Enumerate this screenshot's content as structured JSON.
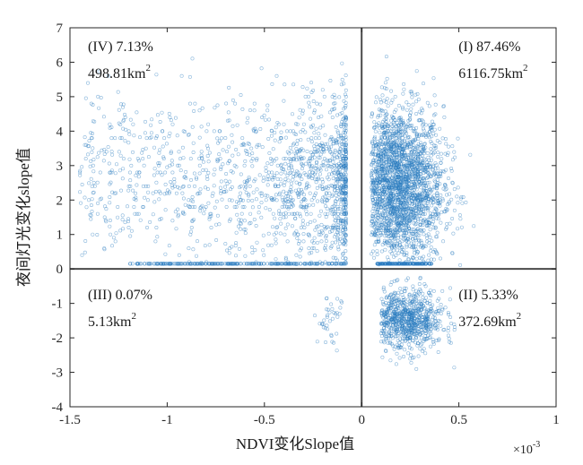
{
  "chart_data": {
    "type": "scatter",
    "xlabel": "NDVI变化Slope值",
    "ylabel": "夜间灯光变化slope值",
    "x_multiplier": "×10",
    "x_multiplier_exp": "-3",
    "xlim": [
      -0.0015,
      0.001
    ],
    "ylim": [
      -4,
      7
    ],
    "x_ticks": [
      -0.0015,
      -0.001,
      -0.0005,
      0,
      0.0005,
      0.001
    ],
    "x_tick_labels": [
      "-1.5",
      "-1",
      "-0.5",
      "0",
      "0.5",
      "1"
    ],
    "y_ticks": [
      -4,
      -3,
      -2,
      -1,
      0,
      1,
      2,
      3,
      4,
      5,
      6,
      7
    ],
    "y_tick_labels": [
      "-4",
      "-3",
      "-2",
      "-1",
      "0",
      "1",
      "2",
      "3",
      "4",
      "5",
      "6",
      "7"
    ],
    "reference_lines": {
      "x": 0,
      "y": 0
    },
    "marker_color": "#2a7bc0",
    "grid": false,
    "quadrants": [
      {
        "id": "I",
        "percent_text": "(I) 87.46%",
        "area_value": "6116.75km",
        "area_unit_exp": "2",
        "position": "top-right"
      },
      {
        "id": "II",
        "percent_text": "(II) 5.33%",
        "area_value": "372.69km",
        "area_unit_exp": "2",
        "position": "bottom-right"
      },
      {
        "id": "III",
        "percent_text": "(III) 0.07%",
        "area_value": "5.13km",
        "area_unit_exp": "2",
        "position": "bottom-left"
      },
      {
        "id": "IV",
        "percent_text": "(IV) 7.13%",
        "area_value": "498.81km",
        "area_unit_exp": "2",
        "position": "top-left"
      }
    ],
    "clusters": [
      {
        "quadrant": "I",
        "x_center": 0.00018,
        "x_spread": 0.00012,
        "y_center": 2.4,
        "y_spread": 1.15,
        "y_range": [
          0.1,
          6.2
        ],
        "x_range": [
          5e-05,
          0.00068
        ],
        "density": "very-high"
      },
      {
        "quadrant": "II",
        "x_center": 0.00022,
        "x_spread": 0.0001,
        "y_center": -1.5,
        "y_spread": 0.45,
        "y_range": [
          -3.7,
          -0.1
        ],
        "x_range": [
          0.0001,
          0.00048
        ],
        "density": "high"
      },
      {
        "quadrant": "III",
        "x_center": -0.00015,
        "x_spread": 4e-05,
        "y_center": -1.4,
        "y_spread": 0.4,
        "y_range": [
          -2.6,
          -0.8
        ],
        "x_range": [
          -0.00035,
          -0.0001
        ],
        "density": "sparse"
      },
      {
        "quadrant": "IV",
        "x_center": -0.00014,
        "x_spread": 0.00012,
        "y_center": 2.6,
        "y_spread": 1.2,
        "y_range": [
          0.1,
          6.2
        ],
        "x_range": [
          -0.00145,
          -8e-05
        ],
        "density": "high-near-zero"
      }
    ]
  }
}
